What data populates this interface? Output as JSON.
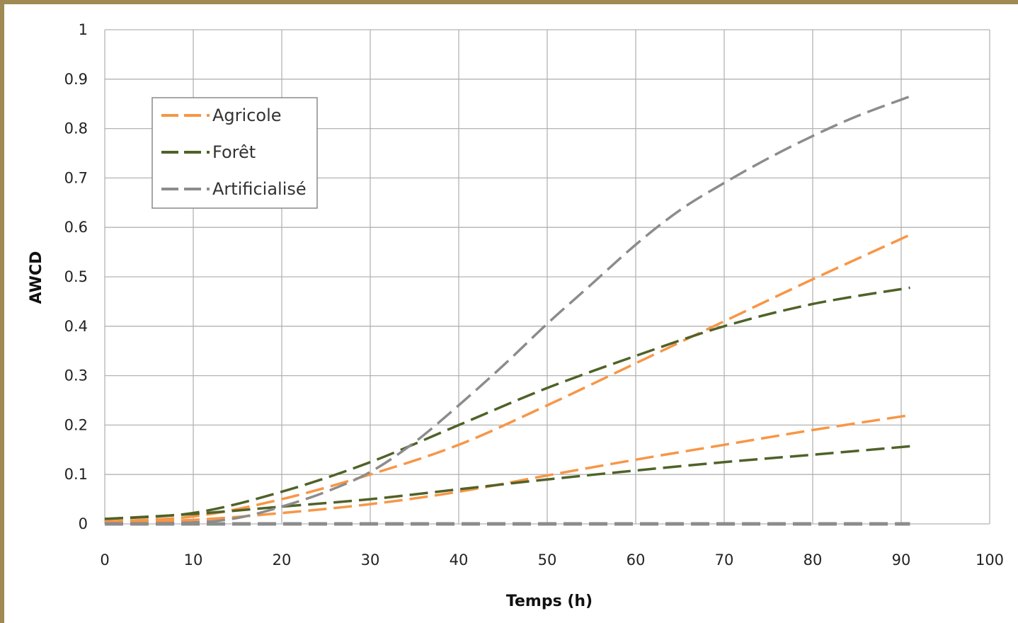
{
  "chart_data": {
    "type": "line",
    "title": "",
    "xlabel": "Temps (h)",
    "ylabel": "AWCD",
    "xlim": [
      0,
      100
    ],
    "ylim": [
      0,
      1
    ],
    "xticks": [
      "0",
      "10",
      "20",
      "30",
      "40",
      "50",
      "60",
      "70",
      "80",
      "90",
      "100"
    ],
    "yticks": [
      "0",
      "0.1",
      "0.2",
      "0.3",
      "0.4",
      "0.5",
      "0.6",
      "0.7",
      "0.8",
      "0.9",
      "1"
    ],
    "grid": true,
    "legend_position": "top-left",
    "legend": [
      {
        "name": "Agricole",
        "color": "#f79646"
      },
      {
        "name": "Forêt",
        "color": "#4f6228"
      },
      {
        "name": "Artificialisé",
        "color": "#8c8c8c"
      }
    ],
    "series": [
      {
        "group": "Agricole",
        "color": "#f79646",
        "x": [
          0,
          10,
          20,
          30,
          40,
          50,
          60,
          70,
          80,
          91
        ],
        "y": [
          0.005,
          0.015,
          0.05,
          0.1,
          0.16,
          0.24,
          0.325,
          0.41,
          0.495,
          0.585
        ]
      },
      {
        "group": "Agricole",
        "color": "#f79646",
        "x": [
          0,
          10,
          20,
          30,
          40,
          50,
          60,
          70,
          80,
          91
        ],
        "y": [
          0.003,
          0.008,
          0.022,
          0.04,
          0.065,
          0.098,
          0.13,
          0.16,
          0.19,
          0.22
        ]
      },
      {
        "group": "Forêt",
        "color": "#4f6228",
        "x": [
          0,
          10,
          20,
          30,
          40,
          50,
          60,
          70,
          80,
          91
        ],
        "y": [
          0.01,
          0.022,
          0.065,
          0.125,
          0.2,
          0.275,
          0.34,
          0.4,
          0.445,
          0.478
        ]
      },
      {
        "group": "Forêt",
        "color": "#4f6228",
        "x": [
          0,
          10,
          20,
          30,
          40,
          50,
          60,
          70,
          80,
          91
        ],
        "y": [
          0.01,
          0.02,
          0.035,
          0.05,
          0.07,
          0.09,
          0.108,
          0.125,
          0.14,
          0.157
        ]
      },
      {
        "group": "Artificialisé",
        "color": "#8c8c8c",
        "x": [
          0,
          10,
          15,
          20,
          25,
          30,
          35,
          40,
          45,
          50,
          55,
          60,
          65,
          70,
          75,
          80,
          85,
          91
        ],
        "y": [
          0,
          0.003,
          0.012,
          0.035,
          0.065,
          0.105,
          0.165,
          0.24,
          0.32,
          0.405,
          0.485,
          0.565,
          0.635,
          0.69,
          0.74,
          0.785,
          0.825,
          0.865
        ]
      },
      {
        "group": "Artificialisé",
        "color": "#8c8c8c",
        "x": [
          0,
          10,
          20,
          30,
          40,
          50,
          60,
          70,
          80,
          91
        ],
        "y": [
          0,
          0,
          0,
          0,
          0,
          0,
          0,
          0,
          0,
          0
        ]
      }
    ]
  }
}
